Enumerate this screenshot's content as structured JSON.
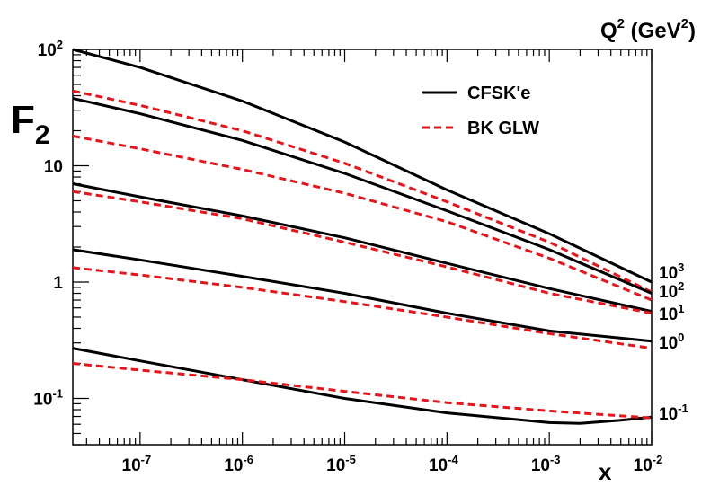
{
  "chart_data": {
    "type": "line",
    "scale": {
      "x": "log",
      "y": "log"
    },
    "xlim": [
      2.2e-08,
      0.01
    ],
    "ylim": [
      0.04,
      100
    ],
    "y_title": {
      "base": "F",
      "sub": "2"
    },
    "x_title": "x",
    "q2_title": {
      "base": "Q",
      "sup": "2",
      "open": " (GeV",
      "sup2": "2",
      "close": ")"
    },
    "legend": {
      "position": "top-right",
      "entries": [
        {
          "label": "CFSK'e",
          "color": "#000000",
          "dash": "solid"
        },
        {
          "label": "BK GLW",
          "color": "#e8141b",
          "dash": "dashed"
        }
      ]
    },
    "y_ticks": [
      {
        "value": 100,
        "base": "10",
        "sup": "2"
      },
      {
        "value": 10,
        "base": "10",
        "sup": ""
      },
      {
        "value": 1,
        "base": "1",
        "sup": ""
      },
      {
        "value": 0.1,
        "base": "10",
        "sup": "-1"
      }
    ],
    "x_ticks": [
      {
        "value": 1e-07,
        "base": "10",
        "sup": "-7"
      },
      {
        "value": 1e-06,
        "base": "10",
        "sup": "-6"
      },
      {
        "value": 1e-05,
        "base": "10",
        "sup": "-5"
      },
      {
        "value": 0.0001,
        "base": "10",
        "sup": "-4"
      },
      {
        "value": 0.001,
        "base": "10",
        "sup": "-3"
      },
      {
        "value": 0.01,
        "base": "10",
        "sup": "-2"
      }
    ],
    "q2_labels": [
      {
        "q2": 1000,
        "base": "10",
        "sup": "3"
      },
      {
        "q2": 100,
        "base": "10",
        "sup": "2"
      },
      {
        "q2": 10,
        "base": "10",
        "sup": "1"
      },
      {
        "q2": 1,
        "base": "10",
        "sup": "0"
      },
      {
        "q2": 0.1,
        "base": "10",
        "sup": "-1"
      }
    ],
    "series": [
      {
        "name": "CFSK'e",
        "q2": 1000,
        "x": [
          2.2e-08,
          1e-07,
          1e-06,
          1e-05,
          0.0001,
          0.001,
          0.01
        ],
        "y": [
          100,
          70,
          36,
          16,
          6.2,
          2.6,
          1.0
        ]
      },
      {
        "name": "BK GLW",
        "q2": 1000,
        "x": [
          2.2e-08,
          1e-07,
          1e-06,
          1e-05,
          0.0001,
          0.001,
          0.01
        ],
        "y": [
          44,
          33,
          20,
          10.5,
          4.9,
          2.2,
          0.82
        ]
      },
      {
        "name": "CFSK'e",
        "q2": 100,
        "x": [
          2.2e-08,
          1e-07,
          1e-06,
          1e-05,
          0.0001,
          0.001,
          0.01
        ],
        "y": [
          38,
          28,
          16.5,
          8.6,
          4.1,
          1.9,
          0.8
        ]
      },
      {
        "name": "BK GLW",
        "q2": 100,
        "x": [
          2.2e-08,
          1e-07,
          1e-06,
          1e-05,
          0.0001,
          0.001,
          0.01
        ],
        "y": [
          18,
          14,
          9.3,
          5.8,
          3.3,
          1.6,
          0.7
        ]
      },
      {
        "name": "CFSK'e",
        "q2": 10,
        "x": [
          2.2e-08,
          1e-07,
          1e-06,
          1e-05,
          0.0001,
          0.001,
          0.01
        ],
        "y": [
          7.0,
          5.4,
          3.7,
          2.4,
          1.45,
          0.88,
          0.56
        ]
      },
      {
        "name": "BK GLW",
        "q2": 10,
        "x": [
          2.2e-08,
          1e-07,
          1e-06,
          1e-05,
          0.0001,
          0.001,
          0.01
        ],
        "y": [
          6.0,
          4.9,
          3.5,
          2.2,
          1.35,
          0.8,
          0.54
        ]
      },
      {
        "name": "CFSK'e",
        "q2": 1,
        "x": [
          2.2e-08,
          1e-07,
          1e-06,
          1e-05,
          0.0001,
          0.001,
          0.01
        ],
        "y": [
          1.9,
          1.55,
          1.12,
          0.8,
          0.54,
          0.38,
          0.31
        ]
      },
      {
        "name": "BK GLW",
        "q2": 1,
        "x": [
          2.2e-08,
          1e-07,
          1e-06,
          1e-05,
          0.0001,
          0.001,
          0.01
        ],
        "y": [
          1.33,
          1.15,
          0.9,
          0.68,
          0.5,
          0.36,
          0.27
        ]
      },
      {
        "name": "CFSK'e",
        "q2": 0.1,
        "x": [
          2.2e-08,
          1e-07,
          1e-06,
          1e-05,
          0.0001,
          0.001,
          0.002,
          0.005,
          0.01
        ],
        "y": [
          0.27,
          0.21,
          0.145,
          0.1,
          0.075,
          0.062,
          0.061,
          0.065,
          0.069
        ]
      },
      {
        "name": "BK GLW",
        "q2": 0.1,
        "x": [
          2.2e-08,
          1e-07,
          1e-06,
          1e-05,
          0.0001,
          0.001,
          0.01
        ],
        "y": [
          0.2,
          0.175,
          0.145,
          0.115,
          0.092,
          0.078,
          0.068
        ]
      }
    ]
  }
}
